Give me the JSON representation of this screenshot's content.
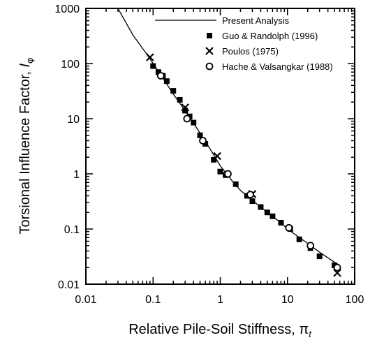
{
  "chart_data": {
    "type": "scatter",
    "xlabel": "Relative Pile-Soil Stiffness, ",
    "xlabel_symbol": "π",
    "xlabel_subscript": "t",
    "ylabel": "Torsional Influence Factor, ",
    "ylabel_symbol": "I",
    "ylabel_subscript": "φ",
    "xscale": "log",
    "yscale": "log",
    "xlim": [
      0.01,
      100
    ],
    "ylim": [
      0.01,
      1000
    ],
    "x_ticks": [
      0.01,
      0.1,
      1,
      10,
      100
    ],
    "x_tick_labels": [
      "0.01",
      "0.1",
      "1",
      "10",
      "100"
    ],
    "y_ticks": [
      0.01,
      0.1,
      1,
      10,
      100,
      1000
    ],
    "y_tick_labels": [
      "0.01",
      "0.1",
      "1",
      "10",
      "100",
      "1000"
    ],
    "legend_position": "top-right",
    "series": [
      {
        "name": "Present Analysis",
        "marker": "line",
        "x": [
          0.03,
          0.05,
          0.08,
          0.1,
          0.13,
          0.2,
          0.3,
          0.5,
          0.8,
          1.0,
          1.5,
          2,
          3,
          5,
          8,
          10,
          15,
          20,
          30,
          50,
          60
        ],
        "y": [
          1000,
          330,
          150,
          100,
          62,
          28,
          14,
          5.5,
          2.2,
          1.4,
          0.75,
          0.5,
          0.33,
          0.2,
          0.13,
          0.1,
          0.07,
          0.055,
          0.038,
          0.025,
          0.022
        ]
      },
      {
        "name": "Guo & Randolph (1996)",
        "marker": "filled-square",
        "x": [
          0.1,
          0.12,
          0.14,
          0.16,
          0.2,
          0.25,
          0.3,
          0.35,
          0.4,
          0.5,
          0.6,
          0.8,
          1.0,
          1.2,
          1.7,
          2.5,
          3.0,
          4.0,
          5.0,
          6.0,
          8.0,
          11.0,
          15.0,
          22.0,
          30.0,
          50.0
        ],
        "y": [
          90,
          70,
          60,
          48,
          32,
          22,
          14,
          11,
          8.5,
          5,
          3.5,
          1.8,
          1.1,
          0.95,
          0.65,
          0.4,
          0.32,
          0.25,
          0.2,
          0.17,
          0.13,
          0.1,
          0.065,
          0.045,
          0.032,
          0.022
        ]
      },
      {
        "name": "Poulos (1975)",
        "marker": "cross",
        "x": [
          0.09,
          0.3,
          0.9,
          3.0,
          55.0
        ],
        "y": [
          130,
          16,
          2.1,
          0.43,
          0.016
        ]
      },
      {
        "name": "Hache & Valsangkar (1988)",
        "marker": "open-circle",
        "x": [
          0.13,
          0.32,
          0.55,
          1.3,
          2.8,
          10.5,
          22.0,
          55.0
        ],
        "y": [
          60,
          10,
          4,
          1.0,
          0.42,
          0.105,
          0.05,
          0.02
        ]
      }
    ]
  }
}
